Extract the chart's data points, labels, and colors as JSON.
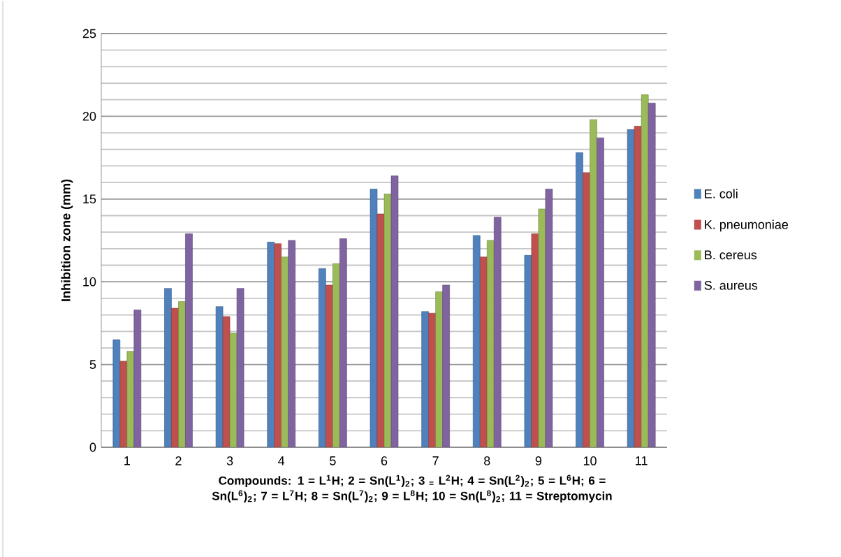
{
  "chart_data": {
    "type": "bar",
    "ylabel": "Inhibition zone (mm)",
    "xlabel": "Compounds: 1 = L$^{1}$H; 2 = Sn(L$^{1}$)$_{2}$; 3 $_{=}$ L$^{2}$H; 4 = Sn(L$^{2}$)$_{2}$; 5 = L$^{6}$H; 6 = Sn(L$^{6}$)$_{2}$; 7 = L$^{7}$H; 8 = Sn(L$^{7}$)$_{2}$; 9 = L$^{8}$H; 10 = Sn(L$^{8}$)$_{2}$; 11 = Streptomycin",
    "categories": [
      "1",
      "2",
      "3",
      "4",
      "5",
      "6",
      "7",
      "8",
      "9",
      "10",
      "11"
    ],
    "series": [
      {
        "name": "E. coli",
        "color": "#4f81bd",
        "values": [
          6.5,
          9.6,
          8.5,
          12.4,
          10.8,
          15.6,
          8.2,
          12.8,
          11.6,
          17.8,
          19.2
        ]
      },
      {
        "name": "K. pneumoniae",
        "color": "#c0504d",
        "values": [
          5.2,
          8.4,
          7.9,
          12.3,
          9.8,
          14.1,
          8.1,
          11.5,
          12.9,
          16.6,
          19.4
        ]
      },
      {
        "name": "B. cereus",
        "color": "#9bbb59",
        "values": [
          5.8,
          8.8,
          6.9,
          11.5,
          11.1,
          15.3,
          9.4,
          12.5,
          14.4,
          19.8,
          21.3
        ]
      },
      {
        "name": "S. aureus",
        "color": "#8064a2",
        "values": [
          8.3,
          12.9,
          9.6,
          12.5,
          12.6,
          16.4,
          9.8,
          13.9,
          15.6,
          18.7,
          20.8
        ]
      }
    ],
    "ylim": [
      0,
      25
    ],
    "yticks": [
      0,
      5,
      10,
      15,
      20,
      25
    ],
    "grid": "y",
    "legend": "right"
  }
}
